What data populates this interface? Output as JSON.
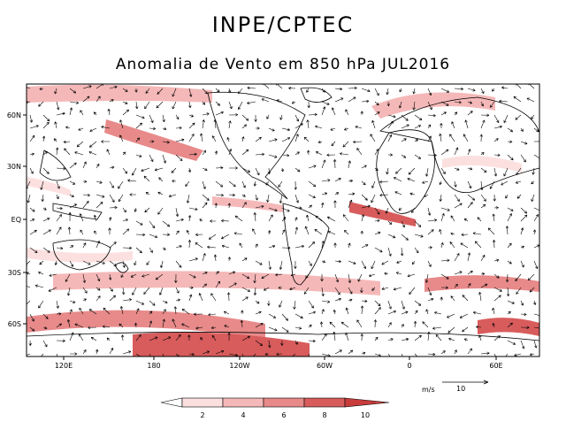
{
  "title": "INPE/CPTEC",
  "subtitle": "Anomalia de Vento em 850 hPa JUL2016",
  "axes": {
    "lon_ticks": [
      "120E",
      "180",
      "120W",
      "60W",
      "0",
      "60E"
    ],
    "lat_ticks": [
      "60N",
      "30N",
      "EQ",
      "30S",
      "60S"
    ]
  },
  "reference_vector": {
    "unit": "m/s",
    "value": "10"
  },
  "colorbar": {
    "levels": [
      "2",
      "4",
      "6",
      "8",
      "10"
    ],
    "colors": [
      "#ffffff",
      "#fce0e0",
      "#f5b8b8",
      "#e88a8a",
      "#d85c5c",
      "#c83c3c"
    ]
  },
  "colors": {
    "coast": "#000000",
    "frame": "#000000",
    "vector": "#000000"
  }
}
